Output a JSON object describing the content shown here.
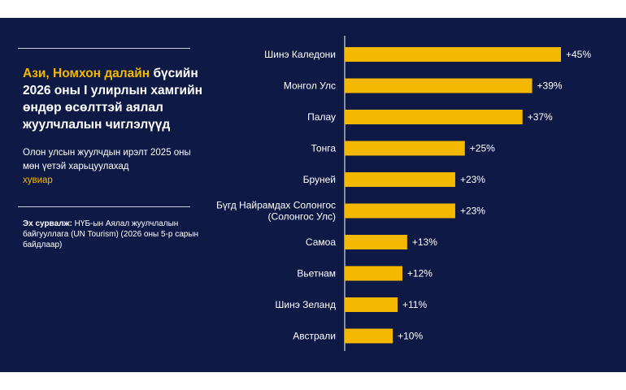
{
  "colors": {
    "background": "#0e1a45",
    "bar": "#f5b800",
    "text": "#ffffff",
    "accent": "#f5b800"
  },
  "header": {
    "title_highlight": "Ази, Номхон далайн",
    "title_rest": " бүсийн 2026 оны I улирлын хамгийн өндөр өсөлттэй аялал жуулчлалын чиглэлүүд",
    "subtitle": "Олон улсын жуулчдын ирэлт 2025 оны мөн үетэй харьцуулахад",
    "subtitle_highlight": "хувиар",
    "source_label": "Эх сурвалж:",
    "source_text": " НҮБ-ын Аялал жуулчлалын байгууллага (UN Tourism) (2026 оны 5-р сарын байдлаар)"
  },
  "chart_data": {
    "type": "bar",
    "orientation": "horizontal",
    "categories": [
      "Шинэ Каледони",
      "Монгол Улс",
      "Палау",
      "Тонга",
      "Бруней",
      "Бүгд Найрамдах Солонгос (Солонгос Улс)",
      "Самоа",
      "Вьетнам",
      "Шинэ Зеланд",
      "Австрали"
    ],
    "category_lines": [
      [
        "Шинэ Каледони"
      ],
      [
        "Монгол Улс"
      ],
      [
        "Палау"
      ],
      [
        "Тонга"
      ],
      [
        "Бруней"
      ],
      [
        "Бүгд Найрамдах Солонгос",
        "(Солонгос Улс)"
      ],
      [
        "Самоа"
      ],
      [
        "Вьетнам"
      ],
      [
        "Шинэ Зеланд"
      ],
      [
        "Австрали"
      ]
    ],
    "values": [
      45,
      39,
      37,
      25,
      23,
      23,
      13,
      12,
      11,
      10
    ],
    "value_labels": [
      "+45%",
      "+39%",
      "+37%",
      "+25%",
      "+23%",
      "+23%",
      "+13%",
      "+12%",
      "+11%",
      "+10%"
    ],
    "xlim": [
      0,
      45
    ],
    "grid": false
  }
}
